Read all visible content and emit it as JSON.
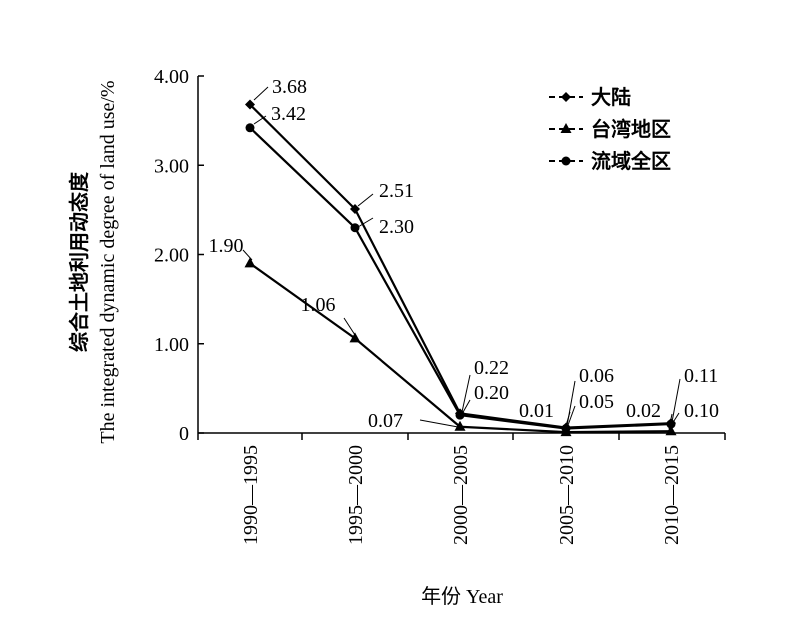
{
  "chart_data": {
    "type": "line",
    "title": "",
    "xlabel": "年份 Year",
    "ylabel_cn": "综合土地利用动态度",
    "ylabel_en": "The integrated dynamic degree of land use/%",
    "categories": [
      "1990—1995",
      "1995—2000",
      "2000—2005",
      "2005—2010",
      "2010—2015"
    ],
    "ylim": [
      0,
      4
    ],
    "yticks": [
      "0",
      "1.00",
      "2.00",
      "3.00",
      "4.00"
    ],
    "grid": false,
    "legend_position": "top-right",
    "series": [
      {
        "name": "大陆",
        "marker": "diamond",
        "values": [
          3.68,
          2.51,
          0.22,
          0.06,
          0.11
        ],
        "labels": [
          "3.68",
          "2.51",
          "0.22",
          "0.06",
          "0.11"
        ]
      },
      {
        "name": "台湾地区",
        "marker": "triangle",
        "values": [
          1.9,
          1.06,
          0.07,
          0.01,
          0.02
        ],
        "labels": [
          "1.90",
          "1.06",
          "0.07",
          "0.01",
          "0.02"
        ]
      },
      {
        "name": "流域全区",
        "marker": "circle",
        "values": [
          3.42,
          2.3,
          0.2,
          0.05,
          0.1
        ],
        "labels": [
          "3.42",
          "2.30",
          "0.20",
          "0.05",
          "0.10"
        ]
      }
    ]
  }
}
